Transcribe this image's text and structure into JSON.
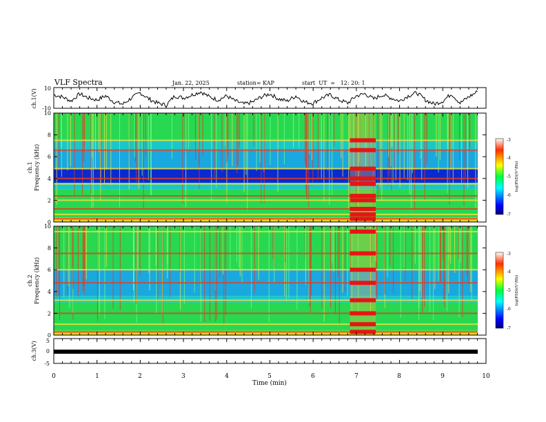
{
  "header": {
    "title": "VLF Spectra",
    "date": "Jan. 22, 2025",
    "station": "station= KAP",
    "start": "start  UT  =   12: 20: 1"
  },
  "colors": {
    "bg_low": "#0000b4",
    "noise_mid": "#1ee650",
    "line_high": "#e61414",
    "black": "#000000"
  },
  "chart_data": [
    {
      "id": "ch1_waveform",
      "type": "line",
      "ylabel": "ch.1(V)",
      "ylim": [
        -10,
        10
      ],
      "ytick_labels": [
        "10",
        "-10"
      ],
      "xlim": [
        0,
        10
      ],
      "x": [
        0,
        0.2,
        0.4,
        0.6,
        0.8,
        1.0,
        1.2,
        1.4,
        1.6,
        1.8,
        2.0,
        2.2,
        2.4,
        2.6,
        2.8,
        3.0,
        3.2,
        3.4,
        3.6,
        3.8,
        4.0,
        4.2,
        4.4,
        4.6,
        4.8,
        5.0,
        5.2,
        5.4,
        5.6,
        5.8,
        6.0,
        6.2,
        6.4,
        6.6,
        6.8,
        7.0,
        7.2,
        7.4,
        7.6,
        7.8,
        8.0,
        8.2,
        8.4,
        8.6,
        8.8,
        9.0,
        9.2,
        9.4,
        9.6,
        9.8
      ],
      "y": [
        3,
        1,
        -3,
        4,
        0,
        -2,
        2,
        -4,
        -6,
        0,
        5,
        -1,
        -5,
        -7,
        2,
        0,
        3,
        6,
        1,
        -2,
        2,
        -3,
        -6,
        -4,
        1,
        4,
        -1,
        -3,
        2,
        -4,
        -5,
        0,
        3,
        -2,
        -5,
        2,
        4,
        -1,
        3,
        0,
        -3,
        2,
        5,
        -2,
        -6,
        -3,
        4,
        -5,
        1,
        6
      ]
    },
    {
      "id": "ch1_spectrogram",
      "type": "heatmap",
      "ylabel": "ch.1\nFrequency (kHz)",
      "ylabel_lines": [
        "ch.1",
        "Frequency (kHz)"
      ],
      "ylim": [
        0,
        10
      ],
      "ytick_labels": [
        "10",
        "8",
        "6",
        "4",
        "2",
        "0"
      ],
      "xlim": [
        0,
        10
      ],
      "colorbar": {
        "label": "log(PSD)(V²/Hz)",
        "range": [
          -7,
          -3
        ],
        "tick_labels": [
          "-3",
          "-4",
          "-5",
          "-6",
          "-7"
        ]
      },
      "bands_khz": [
        {
          "from": 0,
          "to": 0.4,
          "level": "high"
        },
        {
          "from": 0.4,
          "to": 3.0,
          "level": "mid-high"
        },
        {
          "from": 3.0,
          "to": 3.6,
          "level": "mid"
        },
        {
          "from": 3.6,
          "to": 4.9,
          "level": "low"
        },
        {
          "from": 4.9,
          "to": 6.6,
          "level": "mid-low"
        },
        {
          "from": 6.6,
          "to": 7.5,
          "level": "mid"
        },
        {
          "from": 7.5,
          "to": 10,
          "level": "mid-high"
        }
      ],
      "lines_khz": [
        0.3,
        0.7,
        1.2,
        2.0,
        2.4,
        3.5,
        4.0,
        4.9,
        6.6,
        7.5
      ],
      "burst_minutes": [
        6.85,
        7.45
      ]
    },
    {
      "id": "ch2_spectrogram",
      "type": "heatmap",
      "ylabel": "ch.2\nFrequency (kHz)",
      "ylabel_lines": [
        "ch.2",
        "Frequency (kHz)"
      ],
      "ylim": [
        0,
        10
      ],
      "ytick_labels": [
        "10",
        "8",
        "6",
        "4",
        "2",
        "0"
      ],
      "xlim": [
        0,
        10
      ],
      "colorbar": {
        "label": "log(PSD)(V²/Hz)",
        "range": [
          -7,
          -3
        ],
        "tick_labels": [
          "-3",
          "-4",
          "-5",
          "-6",
          "-7"
        ]
      },
      "bands_khz": [
        {
          "from": 0,
          "to": 0.4,
          "level": "high"
        },
        {
          "from": 0.4,
          "to": 3.0,
          "level": "mid-high"
        },
        {
          "from": 3.0,
          "to": 3.6,
          "level": "mid"
        },
        {
          "from": 3.6,
          "to": 4.8,
          "level": "mid-low"
        },
        {
          "from": 4.8,
          "to": 6.0,
          "level": "mid-low"
        },
        {
          "from": 6.0,
          "to": 10,
          "level": "mid-high"
        }
      ],
      "lines_khz": [
        0.3,
        1.0,
        2.0,
        3.2,
        4.8,
        6.0,
        7.5,
        9.5
      ],
      "burst_minutes": [
        6.85,
        7.45
      ]
    },
    {
      "id": "ch3_waveform",
      "type": "line",
      "ylabel": "ch.3(V)",
      "ylim": [
        -5,
        5
      ],
      "ytick_labels": [
        "5",
        "0",
        "-5"
      ],
      "xlim": [
        0,
        10
      ],
      "x": [
        0,
        9.8
      ],
      "y": [
        0,
        0
      ],
      "xlabel": "Time (min)",
      "xtick_labels": [
        "0",
        "1",
        "2",
        "3",
        "4",
        "5",
        "6",
        "7",
        "8",
        "9",
        "10"
      ]
    }
  ]
}
